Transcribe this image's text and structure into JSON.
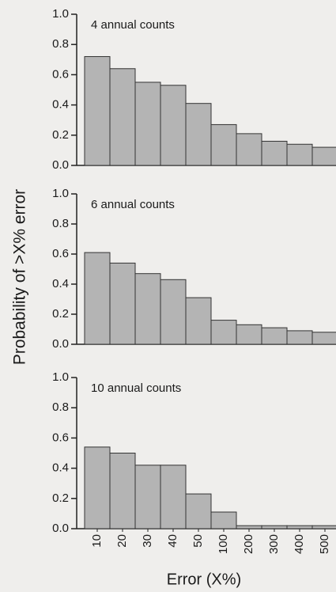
{
  "ylabel": "Probability of  >X% error",
  "xlabel": "Error (X%)",
  "chart_data": [
    {
      "type": "bar",
      "title": "4 annual counts",
      "values": [
        0.72,
        0.64,
        0.55,
        0.53,
        0.41,
        0.27,
        0.21,
        0.16,
        0.14,
        0.12
      ],
      "color": "#b4b4b4",
      "ylim": [
        0,
        1
      ],
      "yticks": [
        {
          "value": 0,
          "label": "0.0"
        },
        0.2,
        0.4,
        0.6,
        0.8,
        {
          "value": 1,
          "label": "1.0"
        }
      ]
    },
    {
      "type": "bar",
      "title": "6 annual counts",
      "values": [
        0.61,
        0.54,
        0.47,
        0.43,
        0.31,
        0.16,
        0.13,
        0.11,
        0.09,
        0.08
      ],
      "color": "#b4b4b4",
      "ylim": [
        0,
        1
      ],
      "yticks": [
        {
          "value": 0,
          "label": "0.0"
        },
        0.2,
        0.4,
        0.6,
        0.8,
        {
          "value": 1,
          "label": "1.0"
        }
      ]
    },
    {
      "type": "bar",
      "title": "10 annual counts",
      "categories": [
        "10",
        "20",
        "30",
        "40",
        "50",
        "100",
        "200",
        "300",
        "400",
        "500"
      ],
      "values": [
        0.54,
        0.5,
        0.42,
        0.42,
        0.23,
        0.11,
        0.02,
        0.02,
        0.02,
        0.02
      ],
      "color": "#b4b4b4",
      "ylim": [
        0,
        1
      ],
      "yticks": [
        {
          "value": 0,
          "label": "0.0"
        },
        0.2,
        0.4,
        0.6,
        0.8,
        {
          "value": 1,
          "label": "1.0"
        }
      ]
    }
  ]
}
